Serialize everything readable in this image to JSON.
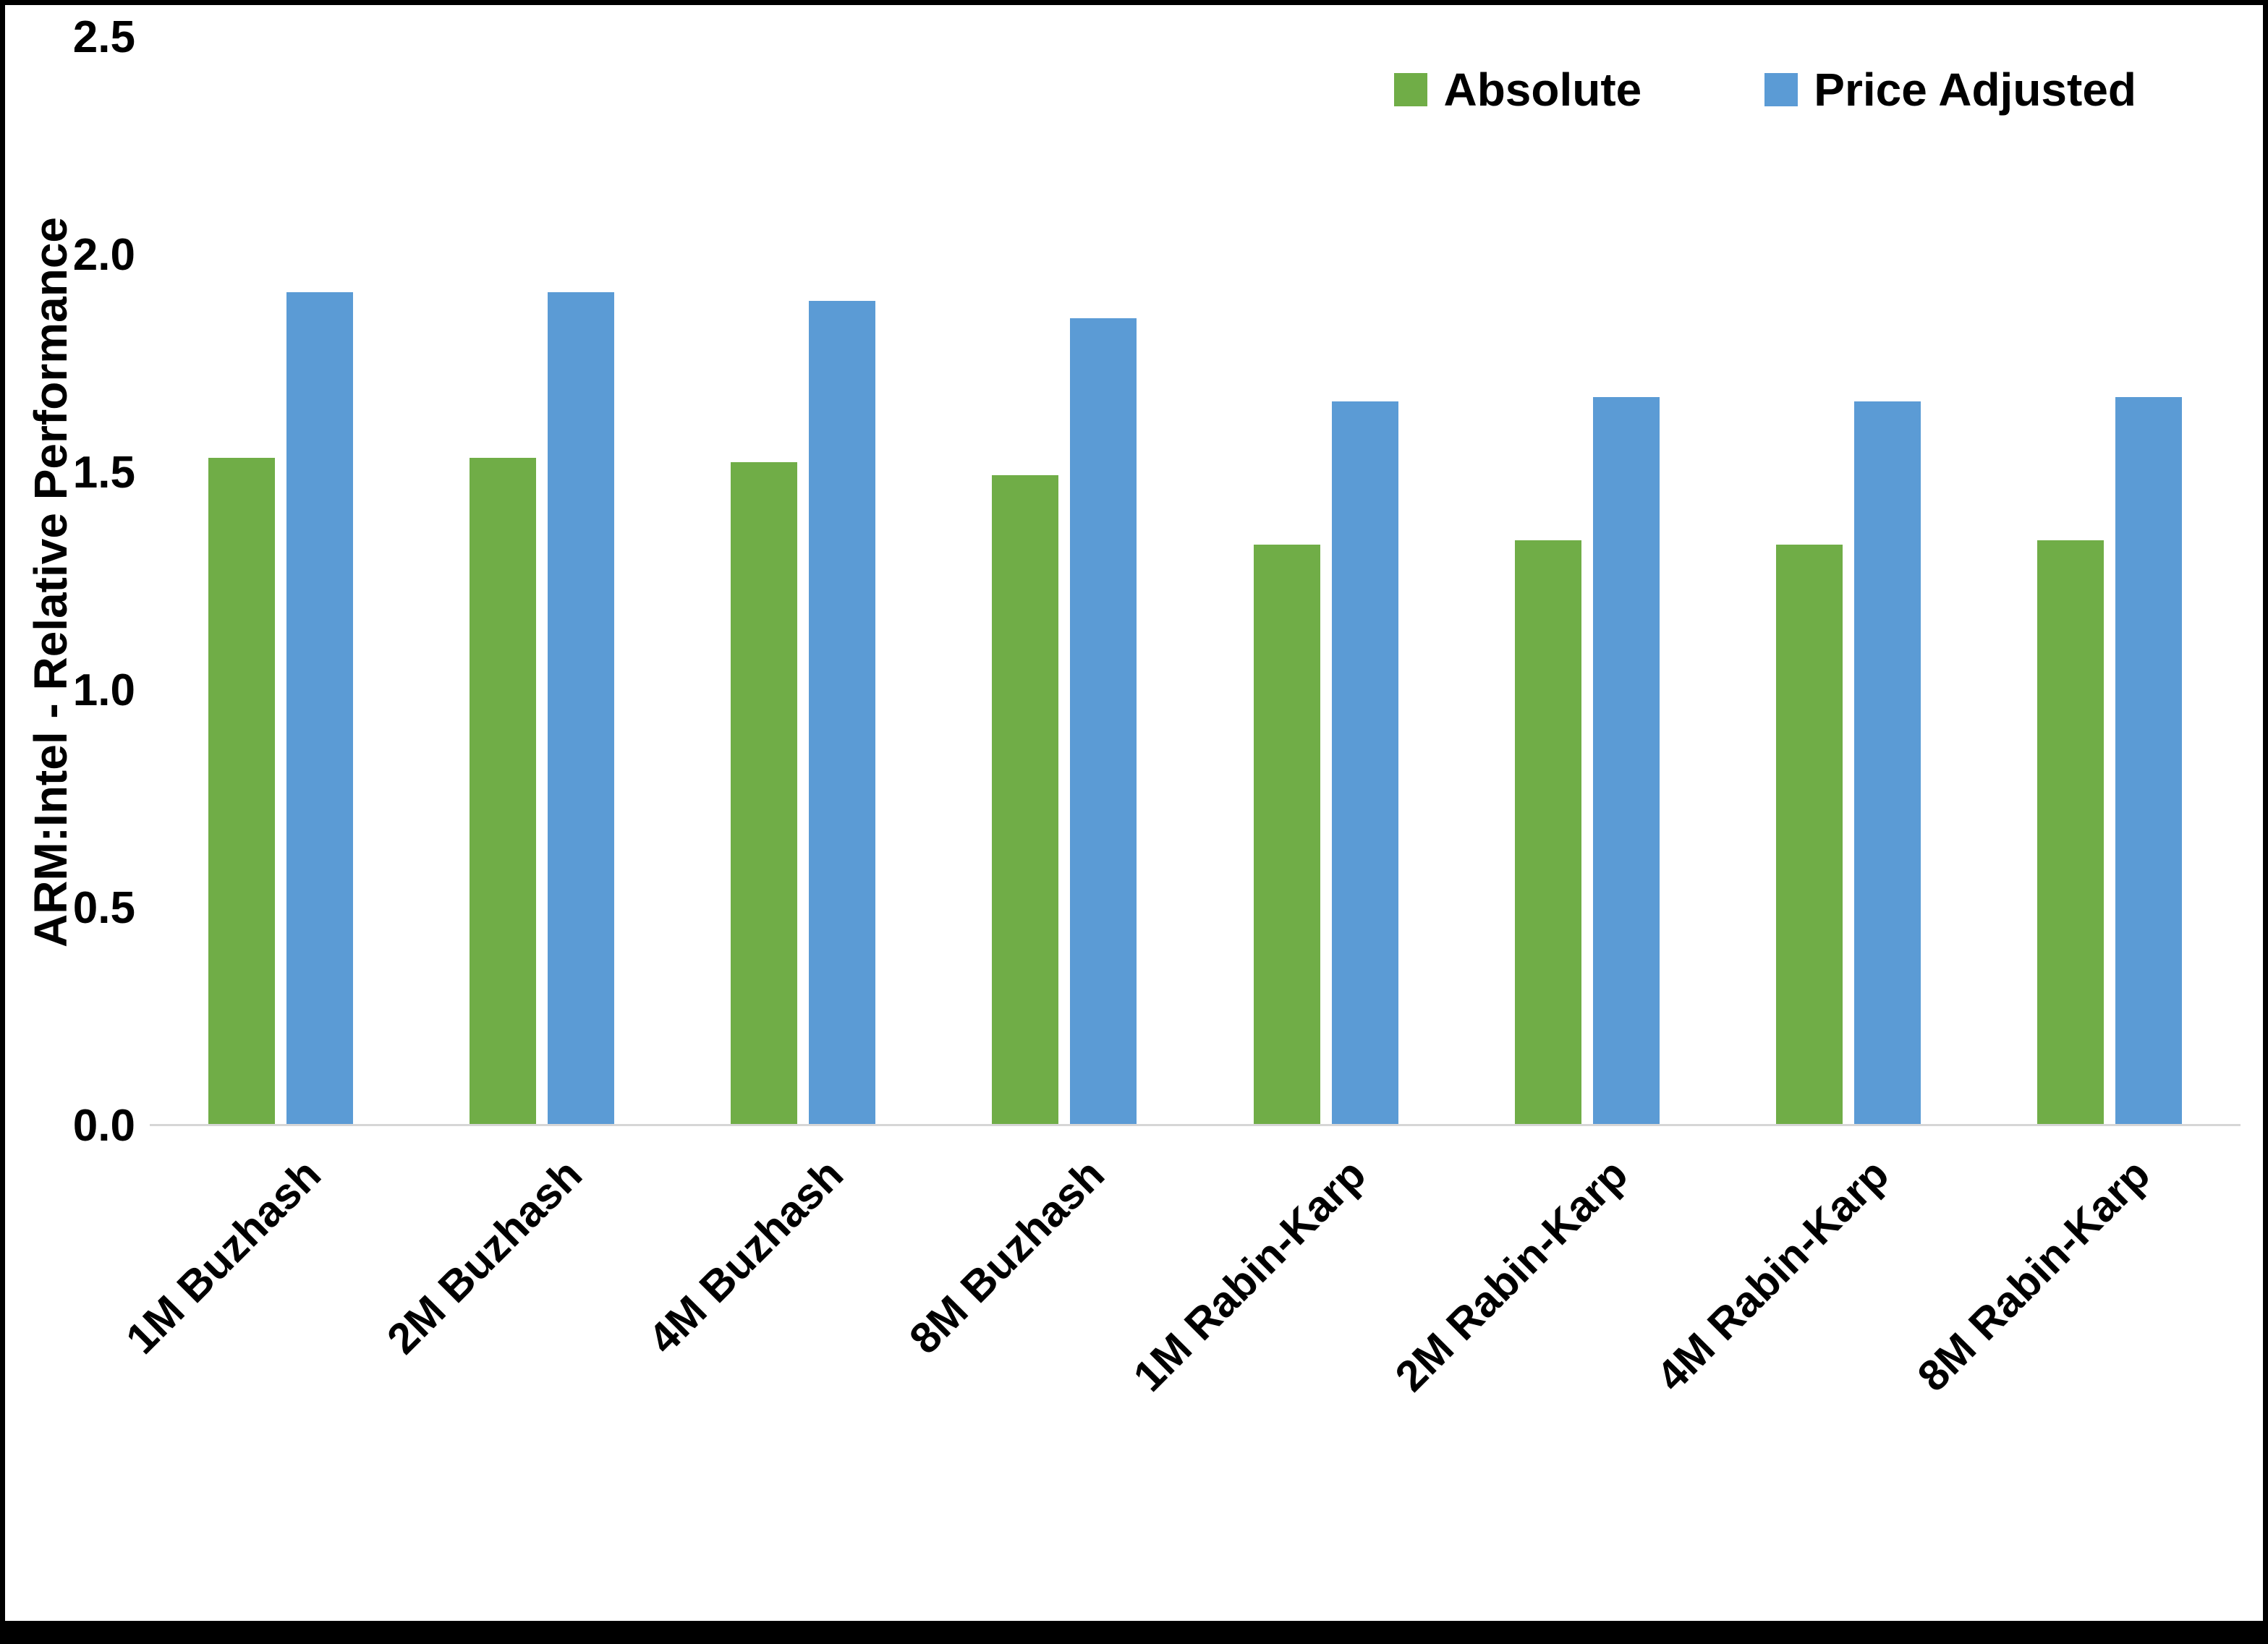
{
  "figure": {
    "border_color": "#000000",
    "background_color": "#ffffff",
    "axis_line_color": "#d6d6d6"
  },
  "chart_data": {
    "type": "bar",
    "title": "",
    "xlabel": "",
    "ylabel": "ARM:Intel - Relative Performance",
    "ylim": [
      0,
      2.5
    ],
    "ytick_labels": [
      "0.0",
      "0.5",
      "1.0",
      "1.5",
      "2.0",
      "2.5"
    ],
    "grid": false,
    "legend_position": "top-right",
    "categories": [
      "1M Buzhash",
      "2M Buzhash",
      "4M Buzhash",
      "8M Buzhash",
      "1M Rabin-Karp",
      "2M Rabin-Karp",
      "4M Rabin-Karp",
      "8M Rabin-Karp"
    ],
    "series": [
      {
        "name": "Absolute",
        "color": "#70AD47",
        "values": [
          1.53,
          1.53,
          1.52,
          1.49,
          1.33,
          1.34,
          1.33,
          1.34
        ]
      },
      {
        "name": "Price Adjusted",
        "color": "#5B9BD5",
        "values": [
          1.91,
          1.91,
          1.89,
          1.85,
          1.66,
          1.67,
          1.66,
          1.67
        ]
      }
    ]
  }
}
